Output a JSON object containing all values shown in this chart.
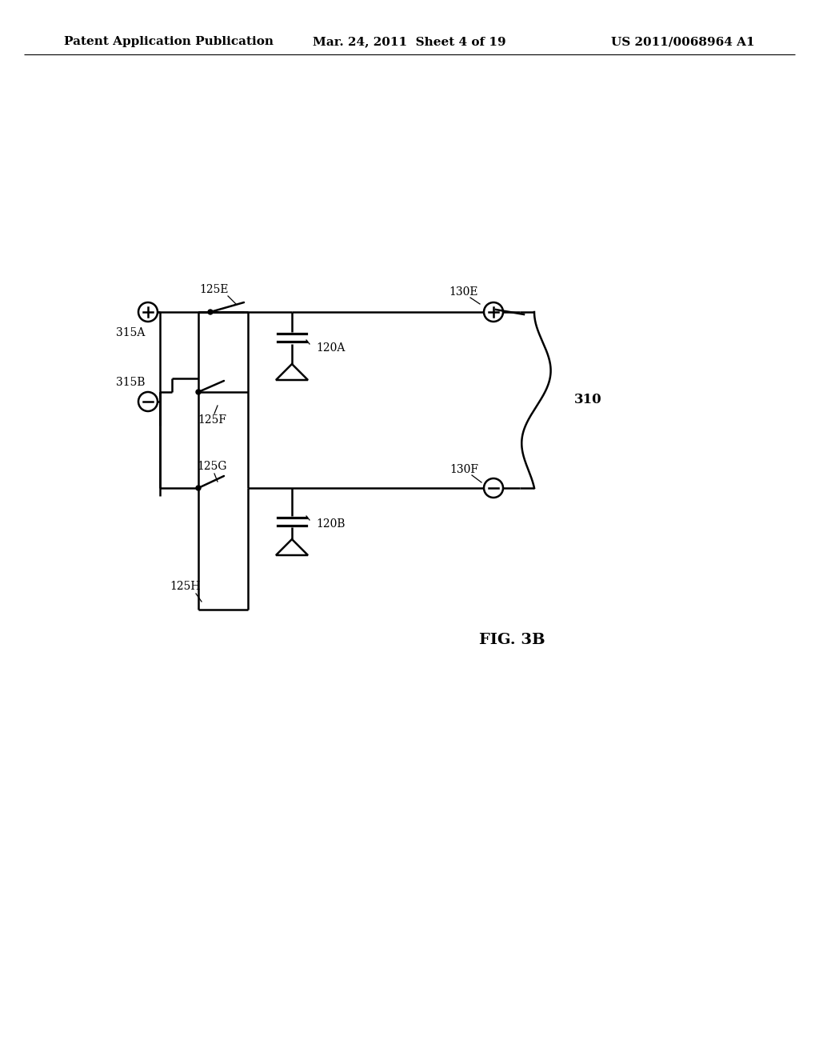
{
  "title_left": "Patent Application Publication",
  "title_mid": "Mar. 24, 2011  Sheet 4 of 19",
  "title_right": "US 2011/0068964 A1",
  "fig_label": "FIG. 3B",
  "bg_color": "#ffffff",
  "line_color": "#000000",
  "font_color": "#000000",
  "header_fontsize": 11,
  "label_fontsize": 10,
  "fig_label_fontsize": 14,
  "lw": 1.8
}
